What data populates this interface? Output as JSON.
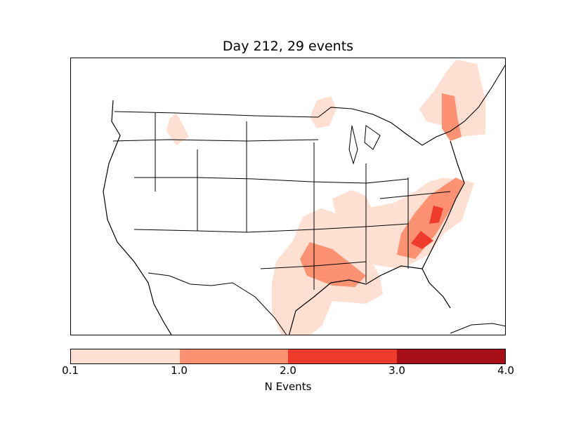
{
  "title": "Day 212, 29 events",
  "colorbar": {
    "label": "N Events",
    "ticks": [
      "0.1",
      "1.0",
      "2.0",
      "3.0",
      "4.0"
    ],
    "colors": [
      "#fee0d2",
      "#fc9272",
      "#ef3b2c",
      "#a50f15"
    ]
  },
  "fill_colors": {
    "low": "#fee0d2",
    "mid": "#fc9272",
    "high": "#ef3b2c"
  }
}
